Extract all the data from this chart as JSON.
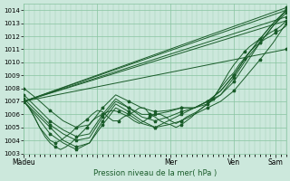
{
  "xlabel": "Pression niveau de la mer( hPa )",
  "ylim": [
    1003,
    1014.5
  ],
  "yticks": [
    1003,
    1004,
    1005,
    1006,
    1007,
    1008,
    1009,
    1010,
    1011,
    1012,
    1013,
    1014
  ],
  "background_color": "#cce8dc",
  "grid_color": "#88c4a0",
  "line_color": "#1a5c2a",
  "line_width": 0.7,
  "marker": "*",
  "marker_size": 2.5,
  "xlim": [
    0,
    100
  ],
  "xticks": [
    0,
    28,
    56,
    80,
    96
  ],
  "xtick_labels": [
    "Màdeu",
    "",
    "Mer",
    "Ven",
    "Sam"
  ],
  "lines": [
    {
      "x": [
        0,
        2,
        4,
        6,
        8,
        10,
        12,
        14,
        16,
        18,
        20,
        22,
        24,
        26,
        28,
        30,
        32,
        34,
        36,
        38,
        40,
        42,
        44,
        46,
        48,
        50,
        52,
        54,
        56,
        58,
        60,
        62,
        64,
        66,
        68,
        70,
        72,
        74,
        76,
        78,
        80,
        82,
        84,
        86,
        88,
        90,
        92,
        94,
        96,
        98,
        100
      ],
      "y": [
        1007.0,
        1006.5,
        1005.8,
        1005.0,
        1004.5,
        1004.0,
        1003.8,
        1004.0,
        1004.3,
        1004.6,
        1005.0,
        1005.3,
        1005.6,
        1006.0,
        1006.3,
        1006.2,
        1005.8,
        1005.5,
        1005.5,
        1005.8,
        1006.0,
        1006.2,
        1006.5,
        1006.5,
        1006.0,
        1005.8,
        1005.5,
        1005.3,
        1005.2,
        1005.0,
        1005.2,
        1005.5,
        1005.8,
        1006.2,
        1006.5,
        1006.8,
        1007.2,
        1007.8,
        1008.3,
        1008.8,
        1009.2,
        1009.8,
        1010.3,
        1010.8,
        1011.2,
        1011.5,
        1011.8,
        1012.0,
        1012.3,
        1012.5,
        1012.8
      ]
    },
    {
      "x": [
        0,
        2,
        4,
        6,
        8,
        10,
        12,
        14,
        16,
        18,
        20,
        22,
        24,
        26,
        28,
        30,
        32,
        34,
        36,
        38,
        40,
        42,
        44,
        46,
        48,
        50,
        52,
        54,
        56,
        58,
        60,
        62,
        64,
        66,
        68,
        70,
        72,
        74,
        76,
        78,
        80,
        82,
        84,
        86,
        88,
        90,
        92,
        94,
        96,
        98,
        100
      ],
      "y": [
        1007.0,
        1006.5,
        1005.8,
        1005.0,
        1004.3,
        1003.8,
        1003.5,
        1003.3,
        1003.5,
        1003.8,
        1004.2,
        1004.6,
        1005.0,
        1005.5,
        1005.8,
        1006.0,
        1006.2,
        1006.3,
        1006.2,
        1006.0,
        1005.8,
        1005.5,
        1005.3,
        1005.5,
        1005.8,
        1006.0,
        1006.0,
        1005.8,
        1005.5,
        1005.3,
        1005.5,
        1005.8,
        1006.0,
        1006.2,
        1006.5,
        1006.8,
        1007.2,
        1007.8,
        1008.5,
        1009.2,
        1009.8,
        1010.3,
        1010.8,
        1011.2,
        1011.5,
        1011.8,
        1012.0,
        1012.3,
        1012.5,
        1012.8,
        1013.2
      ]
    },
    {
      "x": [
        0,
        5,
        10,
        15,
        20,
        25,
        30,
        35,
        40,
        45,
        50,
        55,
        60,
        65,
        70,
        75,
        80,
        85,
        90,
        95,
        100
      ],
      "y": [
        1007.0,
        1006.0,
        1005.0,
        1004.0,
        1003.5,
        1003.8,
        1005.5,
        1006.8,
        1006.2,
        1005.5,
        1005.0,
        1005.2,
        1005.5,
        1006.0,
        1006.5,
        1007.0,
        1007.8,
        1009.0,
        1010.2,
        1011.5,
        1013.0
      ]
    },
    {
      "x": [
        0,
        5,
        10,
        15,
        20,
        25,
        30,
        35,
        40,
        45,
        50,
        55,
        60,
        65,
        70,
        75,
        80,
        85,
        90,
        95,
        100
      ],
      "y": [
        1007.0,
        1005.8,
        1004.5,
        1003.8,
        1003.3,
        1003.8,
        1005.2,
        1006.5,
        1006.0,
        1005.3,
        1005.0,
        1005.5,
        1006.0,
        1006.5,
        1007.0,
        1007.5,
        1008.5,
        1010.0,
        1011.5,
        1012.8,
        1014.0
      ]
    },
    {
      "x": [
        0,
        5,
        10,
        15,
        20,
        25,
        30,
        35,
        40,
        45,
        50,
        55,
        60,
        65,
        70,
        75,
        80,
        85,
        90,
        95,
        100
      ],
      "y": [
        1007.5,
        1006.5,
        1005.5,
        1004.8,
        1004.3,
        1004.5,
        1006.0,
        1007.2,
        1006.5,
        1005.8,
        1005.5,
        1005.8,
        1006.2,
        1006.5,
        1007.0,
        1007.8,
        1009.0,
        1010.5,
        1011.8,
        1013.0,
        1014.0
      ]
    },
    {
      "x": [
        0,
        5,
        10,
        15,
        20,
        25,
        30,
        35,
        40,
        45,
        50,
        55,
        60,
        65,
        70,
        75,
        80,
        85,
        90,
        95,
        100
      ],
      "y": [
        1007.2,
        1006.2,
        1005.2,
        1004.5,
        1004.0,
        1004.2,
        1005.8,
        1007.0,
        1006.5,
        1006.0,
        1006.0,
        1006.2,
        1006.5,
        1006.5,
        1006.8,
        1007.5,
        1008.8,
        1010.3,
        1011.5,
        1012.8,
        1013.8
      ]
    },
    {
      "x": [
        0,
        5,
        10,
        15,
        20,
        25,
        30,
        35,
        40,
        45,
        50,
        55,
        60,
        65,
        70,
        75,
        80,
        85,
        90,
        95,
        100
      ],
      "y": [
        1008.0,
        1007.2,
        1006.3,
        1005.5,
        1005.0,
        1005.2,
        1006.5,
        1007.5,
        1007.0,
        1006.5,
        1006.2,
        1006.3,
        1006.5,
        1006.5,
        1007.0,
        1007.8,
        1009.0,
        1010.5,
        1011.8,
        1013.0,
        1014.0
      ]
    },
    {
      "x": [
        0,
        100
      ],
      "y": [
        1007.0,
        1013.2
      ]
    },
    {
      "x": [
        0,
        100
      ],
      "y": [
        1007.0,
        1013.5
      ]
    },
    {
      "x": [
        0,
        100
      ],
      "y": [
        1007.0,
        1014.0
      ]
    },
    {
      "x": [
        0,
        100
      ],
      "y": [
        1007.0,
        1014.2
      ]
    },
    {
      "x": [
        0,
        100
      ],
      "y": [
        1007.0,
        1011.0
      ]
    }
  ]
}
